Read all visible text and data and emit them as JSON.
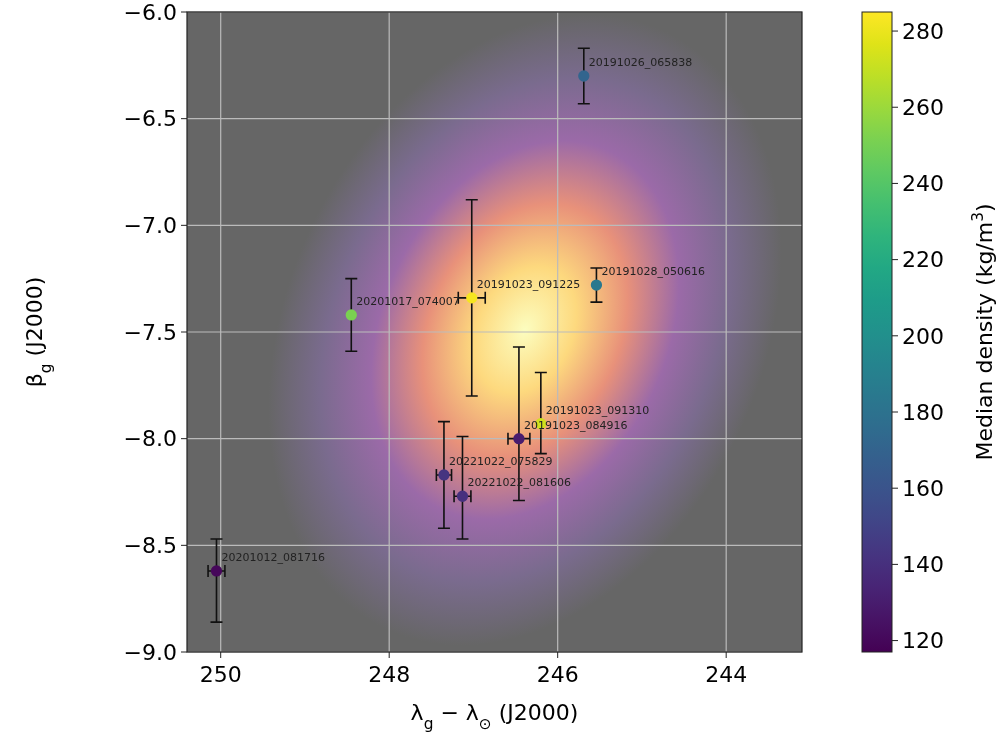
{
  "chart_data": {
    "type": "scatter",
    "xlabel": "λ$_{g}$ − λ$_{⊙}$ (J2000)",
    "ylabel": "β$_{g}$ (J2000)",
    "clabel": "Median density (kg/m$^{3}$)",
    "xlim": [
      250.4,
      243.1
    ],
    "xticks": [
      250,
      248,
      246,
      244
    ],
    "ylim": [
      -9.0,
      -6.0
    ],
    "yticks": [
      {
        "value": -9.0,
        "label": "−9.0"
      },
      {
        "value": -8.5,
        "label": "−8.5"
      },
      {
        "value": -8.0,
        "label": "−8.0"
      },
      {
        "value": -7.5,
        "label": "−7.5"
      },
      {
        "value": -7.0,
        "label": "−7.0"
      },
      {
        "value": -6.5,
        "label": "−6.5"
      },
      {
        "value": -6.0,
        "label": "−6.0"
      }
    ],
    "clim": [
      117,
      285
    ],
    "cticks": [
      120,
      140,
      160,
      180,
      200,
      220,
      240,
      260,
      280
    ],
    "grid": true,
    "marker": "circle",
    "series": [
      {
        "x": [
          245.69,
          245.54,
          247.02,
          248.45,
          250.05,
          247.35,
          247.13,
          246.46,
          246.2
        ],
        "values": [
          -6.3,
          -7.28,
          -7.34,
          -7.42,
          -8.62,
          -8.17,
          -8.27,
          -8.0,
          -7.93
        ],
        "errors": [
          0.13,
          0.08,
          0.46,
          0.17,
          [
            -8.86,
            -8.47
          ],
          0.25,
          [
            -8.47,
            -7.99
          ],
          [
            -8.29,
            -7.57
          ],
          [
            -8.07,
            -7.69
          ]
        ],
        "xerrors": [
          null,
          null,
          0.16,
          null,
          0.1,
          0.09,
          0.1,
          0.13,
          null
        ],
        "cvalues": [
          171,
          184,
          283,
          251,
          120,
          142,
          140,
          130,
          273
        ]
      }
    ],
    "annotations": [
      {
        "text": "20191026_065838",
        "x": 245.69,
        "y": -6.3
      },
      {
        "text": "20191028_050616",
        "x": 245.54,
        "y": -7.28
      },
      {
        "text": "20191023_091225",
        "x": 247.02,
        "y": -7.34
      },
      {
        "text": "20201017_074007",
        "x": 248.45,
        "y": -7.42
      },
      {
        "text": "20201012_081716",
        "x": 250.05,
        "y": -8.62
      },
      {
        "text": "20221022_075829",
        "x": 247.35,
        "y": -8.17
      },
      {
        "text": "20221022_081606",
        "x": 247.13,
        "y": -8.27
      },
      {
        "text": "20191023_084916",
        "x": 246.46,
        "y": -8.0
      },
      {
        "text": "20191023_091310",
        "x": 246.2,
        "y": -7.93
      }
    ]
  }
}
